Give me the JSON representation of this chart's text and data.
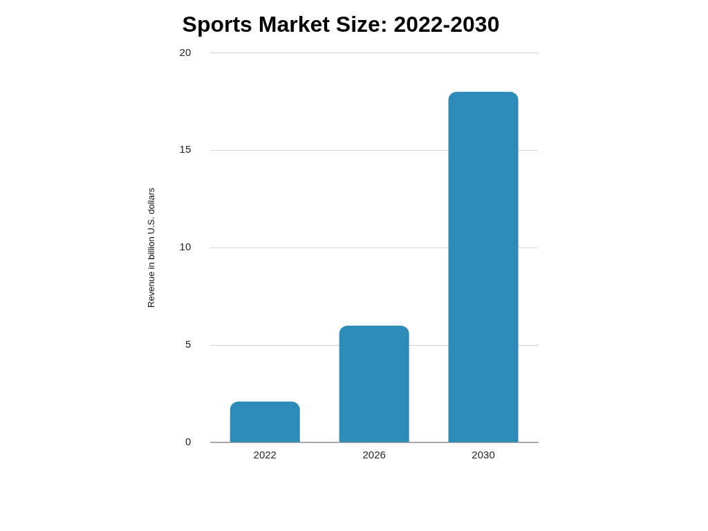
{
  "chart_data": {
    "type": "bar",
    "title": "Sports Market Size: 2022-2030",
    "ylabel": "Revenue in billion U.S. dollars",
    "categories": [
      "2022",
      "2026",
      "2030"
    ],
    "values": [
      2.1,
      6,
      18
    ],
    "color": "#2e8bb8",
    "ylim": [
      0,
      20
    ],
    "yticks": [
      0,
      5,
      10,
      15,
      20
    ],
    "grid": "y",
    "legend": false
  }
}
